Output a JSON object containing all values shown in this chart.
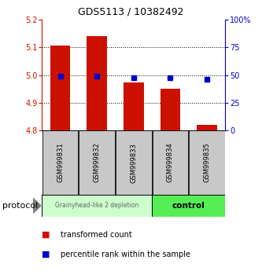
{
  "title": "GDS5113 / 10382492",
  "categories": [
    "GSM999831",
    "GSM999832",
    "GSM999833",
    "GSM999834",
    "GSM999835"
  ],
  "red_bar_tops": [
    5.105,
    5.14,
    4.972,
    4.95,
    4.822
  ],
  "red_bar_bottom": 4.8,
  "blue_values": [
    49.0,
    49.0,
    47.5,
    47.5,
    46.5
  ],
  "ylim_left": [
    4.8,
    5.2
  ],
  "ylim_right": [
    0,
    100
  ],
  "yticks_left": [
    4.8,
    4.9,
    5.0,
    5.1,
    5.2
  ],
  "yticks_right": [
    0,
    25,
    50,
    75,
    100
  ],
  "ytick_labels_right": [
    "0",
    "25",
    "50",
    "75",
    "100%"
  ],
  "red_color": "#cc1100",
  "blue_color": "#0000cc",
  "group1_label": "Grainyhead-like 2 depletion",
  "group2_label": "control",
  "group1_color": "#ccffcc",
  "group2_color": "#55ee55",
  "protocol_label": "protocol",
  "legend1": "transformed count",
  "legend2": "percentile rank within the sample",
  "bar_width": 0.55,
  "bg_color": "#ffffff",
  "label_area_color": "#c8c8c8",
  "title_fontsize": 9,
  "axis_tick_fontsize": 7,
  "label_fontsize": 6,
  "group_fontsize": 6.5,
  "legend_fontsize": 7
}
